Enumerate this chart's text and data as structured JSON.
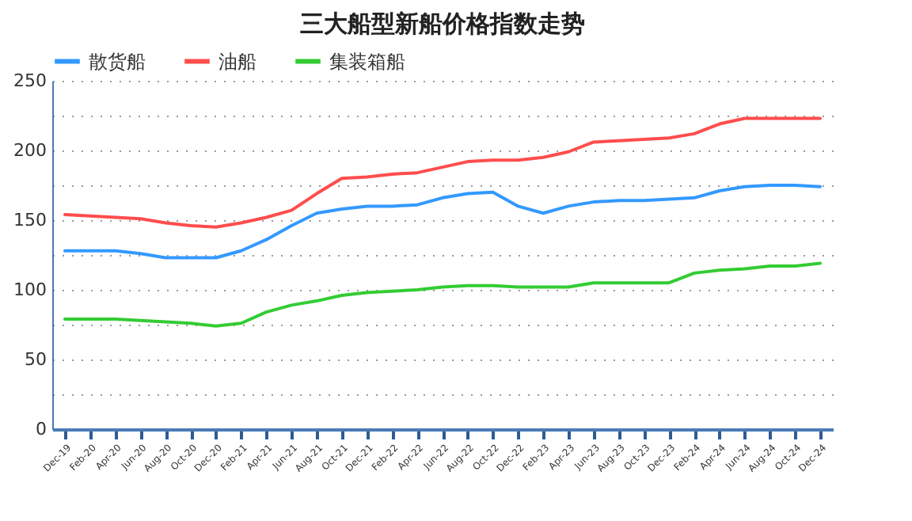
{
  "chart_data": {
    "type": "line",
    "title": "三大船型新船价格指数走势",
    "categories": [
      "Dec-19",
      "Feb-20",
      "Apr-20",
      "Jun-20",
      "Aug-20",
      "Oct-20",
      "Dec-20",
      "Feb-21",
      "Apr-21",
      "Jun-21",
      "Aug-21",
      "Oct-21",
      "Dec-21",
      "Feb-22",
      "Apr-22",
      "Jun-22",
      "Aug-22",
      "Oct-22",
      "Dec-22",
      "Feb-23",
      "Apr-23",
      "Jun-23",
      "Aug-23",
      "Oct-23",
      "Dec-23",
      "Feb-24",
      "Apr-24",
      "Jun-24",
      "Aug-24",
      "Oct-24",
      "Dec-24"
    ],
    "series": [
      {
        "name": "散货船",
        "color": "#3399ff",
        "values": [
          128,
          128,
          128,
          126,
          123,
          123,
          123,
          128,
          136,
          146,
          155,
          158,
          160,
          160,
          161,
          166,
          169,
          170,
          160,
          155,
          160,
          163,
          164,
          164,
          165,
          166,
          171,
          174,
          175,
          175,
          174
        ]
      },
      {
        "name": "油船",
        "color": "#ff4d4d",
        "values": [
          154,
          153,
          152,
          151,
          148,
          146,
          145,
          148,
          152,
          157,
          169,
          180,
          181,
          183,
          184,
          188,
          192,
          193,
          193,
          195,
          199,
          206,
          207,
          208,
          209,
          212,
          219,
          223,
          223,
          223,
          223
        ]
      },
      {
        "name": "集装箱船",
        "color": "#33cc33",
        "values": [
          79,
          79,
          79,
          78,
          77,
          76,
          74,
          76,
          84,
          89,
          92,
          96,
          98,
          99,
          100,
          102,
          103,
          103,
          102,
          102,
          102,
          105,
          105,
          105,
          105,
          112,
          114,
          115,
          117,
          117,
          119
        ]
      }
    ],
    "ylim": [
      0,
      250
    ],
    "yticks": [
      0,
      {
        "value": 25,
        "label": null
      },
      50,
      {
        "value": 75,
        "label": null
      },
      100,
      {
        "value": 125,
        "label": null
      },
      150,
      {
        "value": 175,
        "label": null
      },
      200,
      {
        "value": 225,
        "label": null
      },
      250
    ],
    "grid": "y",
    "legend": "top",
    "marker": "none",
    "line_style": "solid"
  }
}
